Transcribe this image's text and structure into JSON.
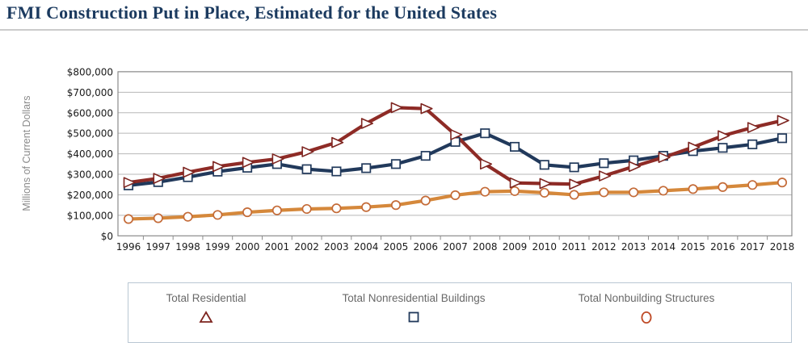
{
  "page": {
    "title": "FMI Construction Put in Place, Estimated for the United States"
  },
  "chart_data": {
    "type": "line",
    "title": "FMI Construction Put in Place, Estimated for the United States",
    "xlabel": "",
    "ylabel": "Millions of Current Dollars",
    "ylim": [
      0,
      800000
    ],
    "y_tick_labels": [
      "$0",
      "$100,000",
      "$200,000",
      "$300,000",
      "$400,000",
      "$500,000",
      "$600,000",
      "$700,000",
      "$800,000"
    ],
    "grid": true,
    "legend_position": "bottom",
    "x": [
      1996,
      1997,
      1998,
      1999,
      2000,
      2001,
      2002,
      2003,
      2004,
      2005,
      2006,
      2007,
      2008,
      2009,
      2010,
      2011,
      2012,
      2013,
      2014,
      2015,
      2016,
      2017,
      2018
    ],
    "series": [
      {
        "name": "Total Residential",
        "marker": "triangle-right",
        "legend_marker": "triangle-up",
        "color": "#8e2b26",
        "marker_color": "#7d241f",
        "values": [
          260000,
          280000,
          310000,
          338000,
          358000,
          375000,
          410000,
          455000,
          548000,
          625000,
          620000,
          493000,
          350000,
          258000,
          255000,
          252000,
          292000,
          338000,
          382000,
          432000,
          488000,
          528000,
          562000
        ]
      },
      {
        "name": "Total Nonresidential Buildings",
        "marker": "square",
        "legend_marker": "square",
        "color": "#21395b",
        "marker_color": "#21395b",
        "values": [
          246000,
          262000,
          286000,
          313000,
          332000,
          350000,
          325000,
          314000,
          330000,
          350000,
          390000,
          458000,
          500000,
          434000,
          346000,
          334000,
          354000,
          368000,
          390000,
          413000,
          429000,
          446000,
          476000
        ]
      },
      {
        "name": "Total Nonbuilding Structures",
        "marker": "circle",
        "legend_marker": "circle",
        "color": "#d5883b",
        "marker_color": "#c46b38",
        "values": [
          82000,
          86000,
          93000,
          102000,
          115000,
          124000,
          131000,
          134000,
          140000,
          150000,
          172000,
          198000,
          215000,
          218000,
          210000,
          200000,
          212000,
          212000,
          220000,
          228000,
          238000,
          248000,
          260000
        ]
      }
    ]
  },
  "legend": {
    "items": [
      {
        "label": "Total Residential"
      },
      {
        "label": "Total Nonresidential Buildings"
      },
      {
        "label": "Total Nonbuilding Structures"
      }
    ]
  },
  "style": {
    "title_color": "#1b3a5f",
    "rule_color": "#cbcbcb",
    "grid_color": "#b7b7b7",
    "axis_color": "#8b8b8b",
    "tick_label_color": "#1a1a1a",
    "axis_title_color": "#8a8a8a",
    "legend_label_color": "#696969",
    "legend_border_color": "#b9c7d3",
    "legend_circle_color": "#bf4a26"
  }
}
